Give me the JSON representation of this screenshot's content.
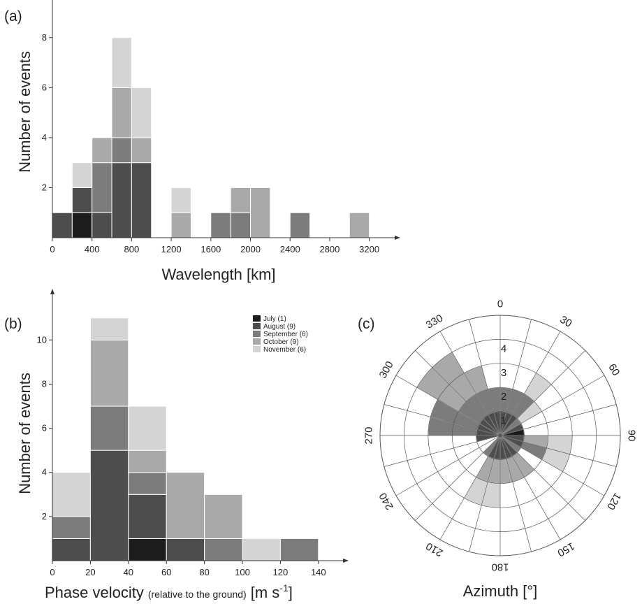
{
  "colors": {
    "July": "#1c1c1c",
    "August": "#4d4d4d",
    "September": "#7c7c7c",
    "October": "#a9a9a9",
    "November": "#d4d4d4"
  },
  "chart_data": [
    {
      "panel_label": "(a)",
      "type": "bar",
      "stacked": true,
      "xlabel": "Wavelength [km]",
      "ylabel": "Number of events",
      "xlim": [
        0,
        3400
      ],
      "ylim": [
        0,
        9
      ],
      "xticks": [
        0,
        400,
        800,
        1200,
        1600,
        2000,
        2400,
        2800,
        3200
      ],
      "yticks": [
        2,
        4,
        6,
        8
      ],
      "bin_width": 200,
      "bins": [
        {
          "x0": 0,
          "July": 0,
          "August": 1,
          "September": 0,
          "October": 0,
          "November": 0
        },
        {
          "x0": 200,
          "July": 1,
          "August": 1,
          "September": 0,
          "October": 0,
          "November": 1
        },
        {
          "x0": 400,
          "July": 0,
          "August": 1,
          "September": 2,
          "October": 1,
          "November": 0
        },
        {
          "x0": 600,
          "July": 0,
          "August": 3,
          "September": 1,
          "October": 2,
          "November": 2
        },
        {
          "x0": 800,
          "July": 0,
          "August": 3,
          "September": 0,
          "October": 1,
          "November": 2
        },
        {
          "x0": 1200,
          "July": 0,
          "August": 0,
          "September": 0,
          "October": 1,
          "November": 1
        },
        {
          "x0": 1600,
          "July": 0,
          "August": 0,
          "September": 1,
          "October": 0,
          "November": 0
        },
        {
          "x0": 1800,
          "July": 0,
          "August": 0,
          "September": 1,
          "October": 1,
          "November": 0
        },
        {
          "x0": 2000,
          "July": 0,
          "August": 0,
          "September": 0,
          "October": 2,
          "November": 0
        },
        {
          "x0": 2400,
          "July": 0,
          "August": 0,
          "September": 1,
          "October": 0,
          "November": 0
        },
        {
          "x0": 3000,
          "July": 0,
          "August": 0,
          "September": 0,
          "October": 1,
          "November": 0
        }
      ]
    },
    {
      "panel_label": "(b)",
      "type": "bar",
      "stacked": true,
      "xlabel": "Phase velocity",
      "xlabel_note": "(relative to the ground)",
      "xlabel_unit": "[m s",
      "xlabel_unit_sup": "-1",
      "xlabel_unit_end": "]",
      "ylabel": "Number of events",
      "xlim": [
        0,
        150
      ],
      "ylim": [
        0,
        11.5
      ],
      "xticks": [
        0,
        20,
        40,
        60,
        80,
        100,
        120,
        140
      ],
      "yticks": [
        2,
        4,
        6,
        8,
        10
      ],
      "bin_width": 20,
      "bins": [
        {
          "x0": 0,
          "July": 0,
          "August": 1,
          "September": 1,
          "October": 0,
          "November": 2
        },
        {
          "x0": 20,
          "July": 0,
          "August": 5,
          "September": 2,
          "October": 3,
          "November": 1
        },
        {
          "x0": 40,
          "July": 1,
          "August": 2,
          "September": 1,
          "October": 1,
          "November": 2
        },
        {
          "x0": 60,
          "July": 0,
          "August": 1,
          "September": 0,
          "October": 3,
          "November": 0
        },
        {
          "x0": 80,
          "July": 0,
          "August": 0,
          "September": 1,
          "October": 2,
          "November": 0
        },
        {
          "x0": 100,
          "July": 0,
          "August": 0,
          "September": 0,
          "October": 0,
          "November": 1
        },
        {
          "x0": 120,
          "July": 0,
          "August": 0,
          "September": 1,
          "October": 0,
          "November": 0
        }
      ],
      "legend": [
        {
          "key": "July",
          "label": "July (1)"
        },
        {
          "key": "August",
          "label": "August (9)"
        },
        {
          "key": "September",
          "label": "September (6)"
        },
        {
          "key": "October",
          "label": "October (9)"
        },
        {
          "key": "November",
          "label": "November (6)"
        }
      ],
      "legend_placement": "top-right"
    },
    {
      "panel_label": "(c)",
      "type": "polar-bar",
      "xlabel": "Azimuth [°]",
      "rmax": 5,
      "radial_ticks": [
        1,
        2,
        3,
        4
      ],
      "angle_ticks": [
        0,
        30,
        60,
        90,
        120,
        150,
        180,
        210,
        240,
        270,
        300,
        330
      ],
      "sector_width_deg": 15,
      "sectors": [
        {
          "start": 0,
          "July": 0,
          "August": 1,
          "September": 1,
          "October": 0,
          "November": 0
        },
        {
          "start": 15,
          "July": 0,
          "August": 1,
          "September": 1,
          "October": 0,
          "November": 0
        },
        {
          "start": 30,
          "July": 0,
          "August": 1,
          "September": 1,
          "October": 0,
          "November": 1
        },
        {
          "start": 45,
          "July": 0,
          "August": 0,
          "September": 1,
          "October": 0,
          "November": 1
        },
        {
          "start": 60,
          "July": 0,
          "August": 1,
          "September": 0,
          "October": 0,
          "November": 0
        },
        {
          "start": 75,
          "July": 1,
          "August": 0,
          "September": 0,
          "October": 0,
          "November": 0
        },
        {
          "start": 90,
          "July": 0,
          "August": 1,
          "September": 0,
          "October": 1,
          "November": 1
        },
        {
          "start": 105,
          "July": 0,
          "August": 1,
          "September": 1,
          "October": 0,
          "November": 1
        },
        {
          "start": 120,
          "July": 0,
          "August": 0,
          "September": 1,
          "October": 0,
          "November": 0
        },
        {
          "start": 135,
          "July": 0,
          "August": 1,
          "September": 0,
          "October": 1,
          "November": 0
        },
        {
          "start": 150,
          "July": 0,
          "August": 1,
          "September": 0,
          "October": 1,
          "November": 0
        },
        {
          "start": 165,
          "July": 0,
          "August": 1,
          "September": 0,
          "October": 1,
          "November": 0
        },
        {
          "start": 180,
          "July": 0,
          "August": 1,
          "September": 0,
          "October": 1,
          "November": 1
        },
        {
          "start": 195,
          "July": 0,
          "August": 1,
          "September": 0,
          "October": 1,
          "November": 1
        },
        {
          "start": 210,
          "July": 0,
          "August": 0,
          "September": 1,
          "October": 0,
          "November": 0
        },
        {
          "start": 225,
          "July": 0,
          "August": 0,
          "September": 0,
          "October": 0,
          "November": 0
        },
        {
          "start": 240,
          "July": 0,
          "August": 0,
          "September": 0,
          "October": 0,
          "November": 0
        },
        {
          "start": 255,
          "July": 0,
          "August": 1,
          "September": 0,
          "October": 0,
          "November": 0
        },
        {
          "start": 270,
          "July": 0,
          "August": 1,
          "September": 2,
          "October": 0,
          "November": 0
        },
        {
          "start": 285,
          "July": 0,
          "August": 1,
          "September": 2,
          "October": 0,
          "November": 0
        },
        {
          "start": 300,
          "July": 0,
          "August": 1,
          "September": 1,
          "October": 2,
          "November": 0
        },
        {
          "start": 315,
          "July": 0,
          "August": 1,
          "September": 1,
          "October": 2,
          "November": 0
        },
        {
          "start": 330,
          "July": 0,
          "August": 1,
          "September": 1,
          "October": 1,
          "November": 0
        },
        {
          "start": 345,
          "July": 0,
          "August": 1,
          "September": 1,
          "October": 0,
          "November": 0
        }
      ]
    }
  ]
}
